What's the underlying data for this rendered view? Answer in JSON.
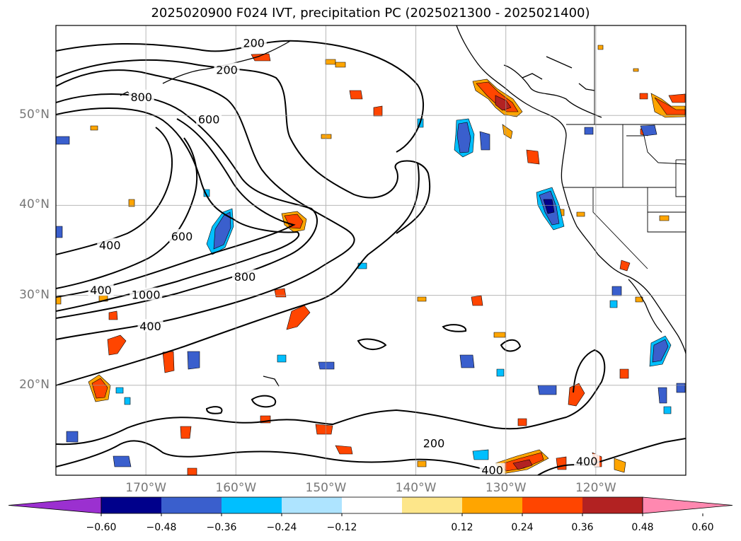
{
  "title": "2025020900 F024 IVT, precipitation PC (2025021300 - 2025021400)",
  "map": {
    "projection": "Plate Carree",
    "extent": {
      "lon_min": -180,
      "lon_max": -110,
      "lat_min": 10,
      "lat_max": 60
    },
    "lat_ticks": [
      {
        "value": 20,
        "label": "20°N"
      },
      {
        "value": 30,
        "label": "30°N"
      },
      {
        "value": 40,
        "label": "40°N"
      },
      {
        "value": 50,
        "label": "50°N"
      }
    ],
    "lon_ticks": [
      {
        "value": -170,
        "label": "170°W"
      },
      {
        "value": -160,
        "label": "160°W"
      },
      {
        "value": -150,
        "label": "150°W"
      },
      {
        "value": -140,
        "label": "140°W"
      },
      {
        "value": -130,
        "label": "130°W"
      },
      {
        "value": -120,
        "label": "120°W"
      }
    ],
    "grid": true,
    "coastline_region": "North Pacific and western North America",
    "contour_labels": [
      {
        "text": "200",
        "lon": -158,
        "lat": 58
      },
      {
        "text": "200",
        "lon": -161,
        "lat": 55
      },
      {
        "text": "800",
        "lon": -170.5,
        "lat": 52
      },
      {
        "text": "600",
        "lon": -163,
        "lat": 49.5
      },
      {
        "text": "400",
        "lon": -174,
        "lat": 35.5
      },
      {
        "text": "600",
        "lon": -166,
        "lat": 36.5
      },
      {
        "text": "800",
        "lon": -159,
        "lat": 32
      },
      {
        "text": "400",
        "lon": -175,
        "lat": 30.5
      },
      {
        "text": "1000",
        "lon": -170,
        "lat": 30
      },
      {
        "text": "400",
        "lon": -169.5,
        "lat": 26.5
      },
      {
        "text": "200",
        "lon": -138,
        "lat": 13.5
      },
      {
        "text": "400",
        "lon": -131.5,
        "lat": 10.5
      },
      {
        "text": "400",
        "lon": -121,
        "lat": 11.5
      }
    ]
  },
  "colorbar": {
    "ticks": [
      "−0.60",
      "−0.48",
      "−0.36",
      "−0.24",
      "−0.12",
      "0.12",
      "0.24",
      "0.36",
      "0.48",
      "0.60"
    ],
    "colors": {
      "under": "#9b30d0",
      "bins": [
        "#00008b",
        "#3a5fcd",
        "#00bfff",
        "#aee4ff",
        "#ffffff",
        "#fde68a",
        "#ffa500",
        "#ff4500",
        "#b22222"
      ],
      "over": "#ff88b0"
    }
  }
}
